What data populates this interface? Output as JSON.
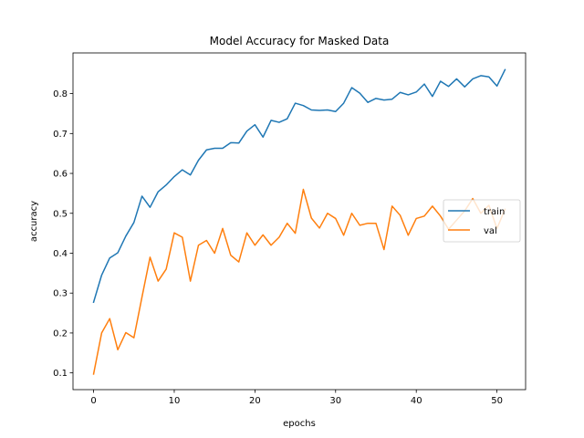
{
  "chart_data": {
    "type": "line",
    "title": "Model Accuracy for Masked Data",
    "xlabel": "epochs",
    "ylabel": "accuracy",
    "xlim": [
      -2.55,
      53.55
    ],
    "ylim": [
      0.058,
      0.902
    ],
    "xticks": [
      0,
      10,
      20,
      30,
      40,
      50
    ],
    "yticks": [
      0.1,
      0.2,
      0.3,
      0.4,
      0.5,
      0.6,
      0.7,
      0.8
    ],
    "legend_position": "center-right",
    "series": [
      {
        "name": "train",
        "color": "#1f77b4",
        "x": [
          0,
          1,
          2,
          3,
          4,
          5,
          6,
          7,
          8,
          9,
          10,
          11,
          12,
          13,
          14,
          15,
          16,
          17,
          18,
          19,
          20,
          21,
          22,
          23,
          24,
          25,
          26,
          27,
          28,
          29,
          30,
          31,
          32,
          33,
          34,
          35,
          36,
          37,
          38,
          39,
          40,
          41,
          42,
          43,
          44,
          45,
          46,
          47,
          48,
          49,
          50,
          51
        ],
        "values": [
          0.277,
          0.345,
          0.388,
          0.401,
          0.443,
          0.477,
          0.543,
          0.515,
          0.554,
          0.571,
          0.592,
          0.609,
          0.596,
          0.633,
          0.659,
          0.663,
          0.663,
          0.677,
          0.676,
          0.706,
          0.722,
          0.691,
          0.733,
          0.728,
          0.737,
          0.776,
          0.77,
          0.759,
          0.758,
          0.759,
          0.755,
          0.776,
          0.815,
          0.801,
          0.778,
          0.788,
          0.784,
          0.786,
          0.803,
          0.797,
          0.804,
          0.824,
          0.793,
          0.831,
          0.818,
          0.837,
          0.817,
          0.837,
          0.845,
          0.842,
          0.819,
          0.86
        ]
      },
      {
        "name": "val",
        "color": "#ff7f0e",
        "x": [
          0,
          1,
          2,
          3,
          4,
          5,
          6,
          7,
          8,
          9,
          10,
          11,
          12,
          13,
          14,
          15,
          16,
          17,
          18,
          19,
          20,
          21,
          22,
          23,
          24,
          25,
          26,
          27,
          28,
          29,
          30,
          31,
          32,
          33,
          34,
          35,
          36,
          37,
          38,
          39,
          40,
          41,
          42,
          43,
          44,
          45,
          46,
          47,
          48,
          49,
          50,
          51
        ],
        "values": [
          0.097,
          0.2,
          0.236,
          0.158,
          0.201,
          0.188,
          0.29,
          0.39,
          0.33,
          0.36,
          0.451,
          0.44,
          0.33,
          0.42,
          0.432,
          0.4,
          0.462,
          0.395,
          0.378,
          0.451,
          0.42,
          0.446,
          0.42,
          0.44,
          0.475,
          0.45,
          0.56,
          0.488,
          0.463,
          0.5,
          0.487,
          0.445,
          0.5,
          0.47,
          0.475,
          0.475,
          0.409,
          0.518,
          0.495,
          0.445,
          0.487,
          0.493,
          0.518,
          0.493,
          0.46,
          0.483,
          0.506,
          0.537,
          0.5,
          0.52,
          0.462,
          0.51
        ]
      }
    ]
  }
}
